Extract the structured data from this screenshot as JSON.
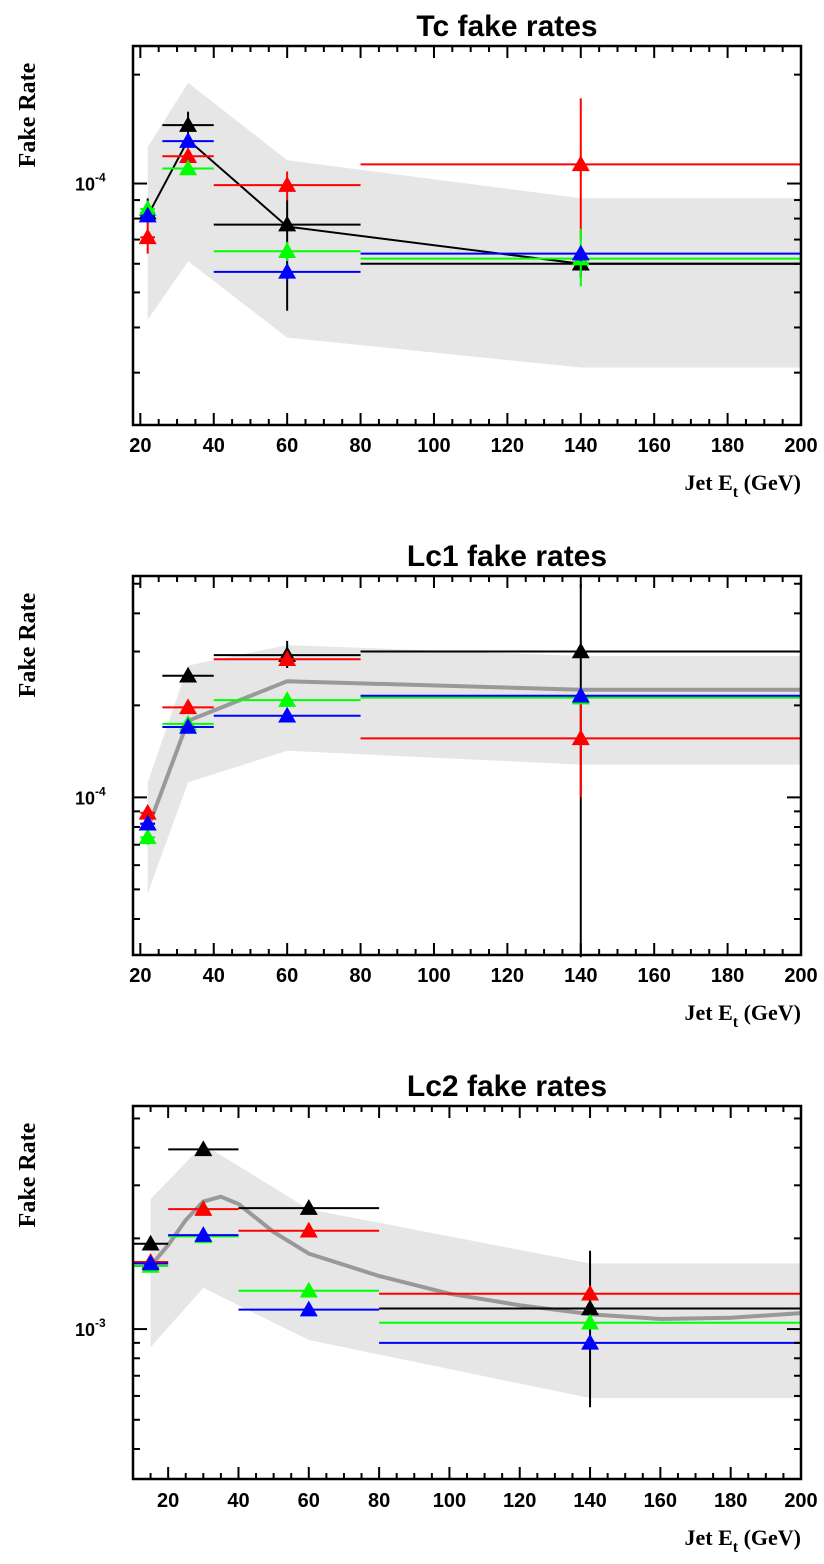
{
  "colors": {
    "black": "#000000",
    "red": "#ff0000",
    "green": "#00ff00",
    "blue": "#0000ff",
    "band": "#e6e6e6",
    "curve_gray": "#999999"
  },
  "chart_data": [
    {
      "type": "scatter",
      "title": "Tc fake rates",
      "ylabel": "Fake Rate",
      "xlabel_main": "Jet E",
      "xlabel_sub": "t",
      "xlabel_unit": " (GeV)",
      "y_scale": "log",
      "xlim": [
        18,
        200
      ],
      "ylim": [
        2.15e-05,
        0.00024
      ],
      "x_ticks": [
        20,
        40,
        60,
        80,
        100,
        120,
        140,
        160,
        180,
        200
      ],
      "y_tick_mantissa": "10",
      "y_tick_exp": "-4",
      "y_tick_value": 0.0001,
      "band": [
        [
          22,
          4.2e-05,
          0.000126
        ],
        [
          33,
          6.1e-05,
          0.00019
        ],
        [
          60,
          3.75e-05,
          0.000116
        ],
        [
          140,
          3.1e-05,
          9.1e-05
        ],
        [
          200,
          3.1e-05,
          9.1e-05
        ]
      ],
      "curve": {
        "style": "black",
        "points": [
          [
            22,
            8.15e-05
          ],
          [
            33,
            0.000132
          ],
          [
            60,
            7.6e-05
          ],
          [
            140,
            6e-05
          ],
          [
            200,
            6e-05
          ]
        ]
      },
      "series": [
        {
          "color": "black",
          "points": [
            {
              "x": 22,
              "y": 8.3e-05,
              "x_lo": 20,
              "x_hi": 24,
              "y_lo": 7.9e-05,
              "y_hi": 9.1e-05
            },
            {
              "x": 33,
              "y": 0.000145,
              "x_lo": 26,
              "x_hi": 40,
              "y_lo": 0.000133,
              "y_hi": 0.000158
            },
            {
              "x": 60,
              "y": 7.7e-05,
              "x_lo": 40,
              "x_hi": 80,
              "y_lo": 4.45e-05,
              "y_hi": 9e-05
            },
            {
              "x": 140,
              "y": 6e-05,
              "x_lo": 80,
              "x_hi": 200,
              "y_lo": 5.5e-05,
              "y_hi": 6.6e-05
            }
          ]
        },
        {
          "color": "red",
          "points": [
            {
              "x": 22,
              "y": 7.1e-05,
              "x_lo": 20,
              "x_hi": 24,
              "y_lo": 6.4e-05,
              "y_hi": 7.9e-05
            },
            {
              "x": 33,
              "y": 0.000119,
              "x_lo": 26,
              "x_hi": 40,
              "y_lo": 0.000114,
              "y_hi": 0.000125
            },
            {
              "x": 60,
              "y": 9.9e-05,
              "x_lo": 40,
              "x_hi": 80,
              "y_lo": 9e-05,
              "y_hi": 0.000108
            },
            {
              "x": 140,
              "y": 0.000113,
              "x_lo": 80,
              "x_hi": 200,
              "y_lo": 7e-05,
              "y_hi": 0.000172
            }
          ]
        },
        {
          "color": "green",
          "points": [
            {
              "x": 22,
              "y": 8.5e-05,
              "x_lo": 20,
              "x_hi": 24,
              "y_lo": 8.1e-05,
              "y_hi": 8.8e-05
            },
            {
              "x": 33,
              "y": 0.00011,
              "x_lo": 26,
              "x_hi": 40,
              "y_lo": 0.000106,
              "y_hi": 0.000114
            },
            {
              "x": 60,
              "y": 6.5e-05,
              "x_lo": 40,
              "x_hi": 80,
              "y_lo": 6.1e-05,
              "y_hi": 6.9e-05
            },
            {
              "x": 140,
              "y": 6.2e-05,
              "x_lo": 80,
              "x_hi": 200,
              "y_lo": 5.2e-05,
              "y_hi": 7.5e-05
            }
          ]
        },
        {
          "color": "blue",
          "points": [
            {
              "x": 22,
              "y": 8.15e-05,
              "x_lo": 20,
              "x_hi": 24,
              "y_lo": 7.8e-05,
              "y_hi": 8.5e-05
            },
            {
              "x": 33,
              "y": 0.000131,
              "x_lo": 26,
              "x_hi": 40,
              "y_lo": 0.000127,
              "y_hi": 0.000135
            },
            {
              "x": 60,
              "y": 5.7e-05,
              "x_lo": 40,
              "x_hi": 80,
              "y_lo": 5.4e-05,
              "y_hi": 6e-05
            },
            {
              "x": 140,
              "y": 6.4e-05,
              "x_lo": 80,
              "x_hi": 200,
              "y_lo": 6.1e-05,
              "y_hi": 6.7e-05
            }
          ]
        }
      ]
    },
    {
      "type": "scatter",
      "title": "Lc1 fake rates",
      "ylabel": "Fake Rate",
      "xlabel_main": "Jet E",
      "xlabel_sub": "t",
      "xlabel_unit": " (GeV)",
      "y_scale": "log",
      "xlim": [
        18,
        200
      ],
      "ylim": [
        3.05e-05,
        0.00053
      ],
      "x_ticks": [
        20,
        40,
        60,
        80,
        100,
        120,
        140,
        160,
        180,
        200
      ],
      "y_tick_mantissa": "10",
      "y_tick_exp": "-4",
      "y_tick_value": 0.0001,
      "band": [
        [
          22,
          4.85e-05,
          0.000112
        ],
        [
          33,
          0.000112,
          0.00027
        ],
        [
          60,
          0.000142,
          0.000315
        ],
        [
          140,
          0.000128,
          0.00029
        ],
        [
          200,
          0.000128,
          0.00029
        ]
      ],
      "curve": {
        "style": "gray",
        "points": [
          [
            22,
            7.9e-05
          ],
          [
            33,
            0.000178
          ],
          [
            60,
            0.00024
          ],
          [
            140,
            0.000225
          ],
          [
            200,
            0.000225
          ]
        ]
      },
      "series": [
        {
          "color": "black",
          "points": [
            {
              "x": 22,
              "y": 8.2e-05,
              "x_lo": 20,
              "x_hi": 24,
              "y_lo": 7.8e-05,
              "y_hi": 8.5e-05
            },
            {
              "x": 33,
              "y": 0.00025,
              "x_lo": 26,
              "x_hi": 40,
              "y_lo": 0.000244,
              "y_hi": 0.000256
            },
            {
              "x": 60,
              "y": 0.000292,
              "x_lo": 40,
              "x_hi": 80,
              "y_lo": 0.000265,
              "y_hi": 0.000325
            },
            {
              "x": 140,
              "y": 0.0003,
              "x_lo": 80,
              "x_hi": 200,
              "y_lo": 3e-05,
              "y_hi": 0.0005
            }
          ]
        },
        {
          "color": "red",
          "points": [
            {
              "x": 22,
              "y": 8.9e-05,
              "x_lo": 20,
              "x_hi": 24,
              "y_lo": 8.5e-05,
              "y_hi": 9.3e-05
            },
            {
              "x": 33,
              "y": 0.000197,
              "x_lo": 26,
              "x_hi": 40,
              "y_lo": 0.000191,
              "y_hi": 0.000203
            },
            {
              "x": 60,
              "y": 0.000283,
              "x_lo": 40,
              "x_hi": 80,
              "y_lo": 0.000275,
              "y_hi": 0.000291
            },
            {
              "x": 140,
              "y": 0.000156,
              "x_lo": 80,
              "x_hi": 200,
              "y_lo": 0.0001,
              "y_hi": 0.000215
            }
          ]
        },
        {
          "color": "green",
          "points": [
            {
              "x": 22,
              "y": 7.4e-05,
              "x_lo": 20,
              "x_hi": 24,
              "y_lo": 7e-05,
              "y_hi": 7.8e-05
            },
            {
              "x": 33,
              "y": 0.000174,
              "x_lo": 26,
              "x_hi": 40,
              "y_lo": 0.000169,
              "y_hi": 0.000179
            },
            {
              "x": 60,
              "y": 0.000208,
              "x_lo": 40,
              "x_hi": 80,
              "y_lo": 0.000202,
              "y_hi": 0.000214
            },
            {
              "x": 140,
              "y": 0.000212,
              "x_lo": 80,
              "x_hi": 200,
              "y_lo": 0.000206,
              "y_hi": 0.000218
            }
          ]
        },
        {
          "color": "blue",
          "points": [
            {
              "x": 22,
              "y": 8.2e-05,
              "x_lo": 20,
              "x_hi": 24,
              "y_lo": 7.8e-05,
              "y_hi": 8.6e-05
            },
            {
              "x": 33,
              "y": 0.00017,
              "x_lo": 26,
              "x_hi": 40,
              "y_lo": 0.000165,
              "y_hi": 0.000175
            },
            {
              "x": 60,
              "y": 0.000185,
              "x_lo": 40,
              "x_hi": 80,
              "y_lo": 0.00018,
              "y_hi": 0.00019
            },
            {
              "x": 140,
              "y": 0.000215,
              "x_lo": 80,
              "x_hi": 200,
              "y_lo": 0.00021,
              "y_hi": 0.00022
            }
          ]
        }
      ]
    },
    {
      "type": "scatter",
      "title": "Lc2 fake rates",
      "ylabel": "Fake Rate",
      "xlabel_main": "Jet E",
      "xlabel_sub": "t",
      "xlabel_unit": " (GeV)",
      "y_scale": "log",
      "xlim": [
        10,
        200
      ],
      "ylim": [
        0.000318,
        0.0055
      ],
      "x_ticks": [
        20,
        40,
        60,
        80,
        100,
        120,
        140,
        160,
        180,
        200
      ],
      "y_tick_mantissa": "10",
      "y_tick_exp": "-3",
      "y_tick_value": 0.001,
      "band": [
        [
          15,
          0.00087,
          0.0027
        ],
        [
          30,
          0.00137,
          0.0041
        ],
        [
          60,
          0.00092,
          0.0025
        ],
        [
          140,
          0.00059,
          0.00165
        ],
        [
          200,
          0.00059,
          0.00165
        ]
      ],
      "curve": {
        "style": "gray_smooth",
        "points": [
          [
            15,
            0.00162
          ],
          [
            20,
            0.0019
          ],
          [
            25,
            0.0023
          ],
          [
            30,
            0.00265
          ],
          [
            35,
            0.00275
          ],
          [
            40,
            0.0026
          ],
          [
            50,
            0.0021
          ],
          [
            60,
            0.00178
          ],
          [
            80,
            0.0015
          ],
          [
            100,
            0.00131
          ],
          [
            120,
            0.0012
          ],
          [
            140,
            0.00112
          ],
          [
            160,
            0.00108
          ],
          [
            180,
            0.00109
          ],
          [
            200,
            0.00113
          ]
        ]
      },
      "series": [
        {
          "color": "black",
          "points": [
            {
              "x": 15,
              "y": 0.00192,
              "x_lo": 10,
              "x_hi": 20,
              "y_lo": 0.00187,
              "y_hi": 0.00197
            },
            {
              "x": 30,
              "y": 0.00395,
              "x_lo": 20,
              "x_hi": 40,
              "y_lo": 0.00385,
              "y_hi": 0.00405
            },
            {
              "x": 60,
              "y": 0.00252,
              "x_lo": 40,
              "x_hi": 80,
              "y_lo": 0.00245,
              "y_hi": 0.00259
            },
            {
              "x": 140,
              "y": 0.00117,
              "x_lo": 80,
              "x_hi": 200,
              "y_lo": 0.00055,
              "y_hi": 0.00182
            }
          ]
        },
        {
          "color": "red",
          "points": [
            {
              "x": 15,
              "y": 0.00167,
              "x_lo": 10,
              "x_hi": 20,
              "y_lo": 0.00162,
              "y_hi": 0.00172
            },
            {
              "x": 30,
              "y": 0.0025,
              "x_lo": 20,
              "x_hi": 40,
              "y_lo": 0.00243,
              "y_hi": 0.00257
            },
            {
              "x": 60,
              "y": 0.00212,
              "x_lo": 40,
              "x_hi": 80,
              "y_lo": 0.00206,
              "y_hi": 0.00218
            },
            {
              "x": 140,
              "y": 0.00131,
              "x_lo": 80,
              "x_hi": 200,
              "y_lo": 0.00126,
              "y_hi": 0.00136
            }
          ]
        },
        {
          "color": "green",
          "points": [
            {
              "x": 15,
              "y": 0.00162,
              "x_lo": 10,
              "x_hi": 20,
              "y_lo": 0.00158,
              "y_hi": 0.00166
            },
            {
              "x": 30,
              "y": 0.00203,
              "x_lo": 20,
              "x_hi": 40,
              "y_lo": 0.00198,
              "y_hi": 0.00208
            },
            {
              "x": 60,
              "y": 0.00134,
              "x_lo": 40,
              "x_hi": 80,
              "y_lo": 0.0013,
              "y_hi": 0.00138
            },
            {
              "x": 140,
              "y": 0.00105,
              "x_lo": 80,
              "x_hi": 200,
              "y_lo": 0.00101,
              "y_hi": 0.00109
            }
          ]
        },
        {
          "color": "blue",
          "points": [
            {
              "x": 15,
              "y": 0.00165,
              "x_lo": 10,
              "x_hi": 20,
              "y_lo": 0.00161,
              "y_hi": 0.00169
            },
            {
              "x": 30,
              "y": 0.00205,
              "x_lo": 20,
              "x_hi": 40,
              "y_lo": 0.002,
              "y_hi": 0.0021
            },
            {
              "x": 60,
              "y": 0.00116,
              "x_lo": 40,
              "x_hi": 80,
              "y_lo": 0.00112,
              "y_hi": 0.0012
            },
            {
              "x": 140,
              "y": 0.0009,
              "x_lo": 80,
              "x_hi": 200,
              "y_lo": 0.00087,
              "y_hi": 0.00093
            }
          ]
        }
      ]
    }
  ]
}
